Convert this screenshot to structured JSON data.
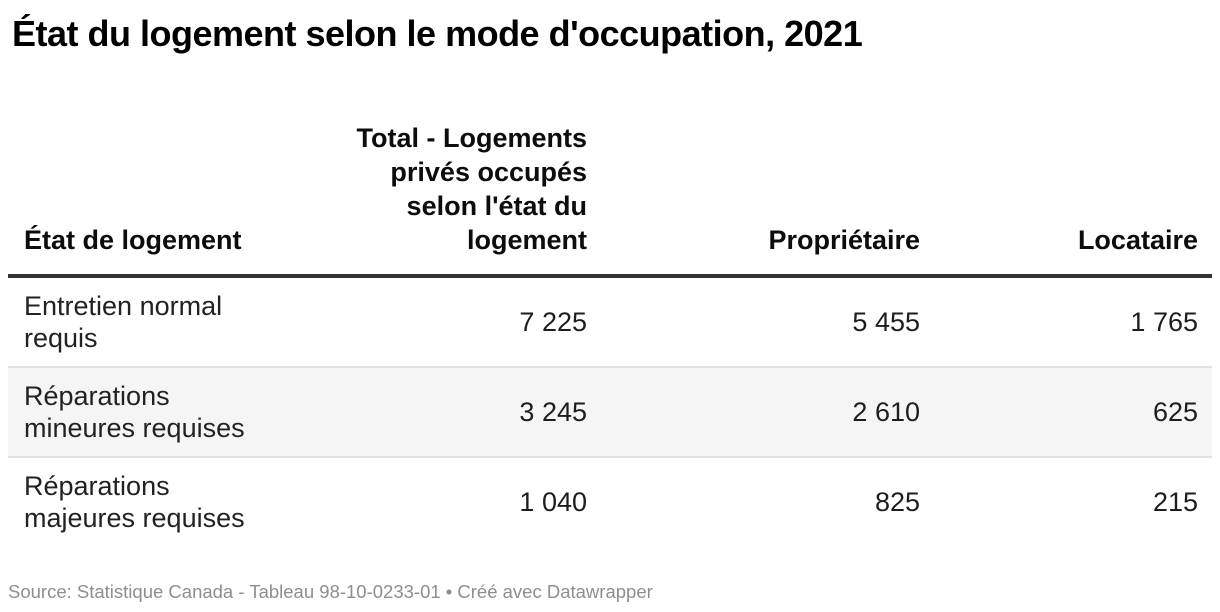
{
  "title": "État du logement selon le mode d'occupation, 2021",
  "table": {
    "columns": [
      "État de logement",
      "Total - Logements\nprivés occupés\nselon l'état du\nlogement",
      "Propriétaire",
      "Locataire"
    ],
    "rows": [
      {
        "cells": [
          "Entretien normal\nrequis",
          "7 225",
          "5 455",
          "1 765"
        ]
      },
      {
        "cells": [
          "Réparations\nmineures requises",
          "3 245",
          "2 610",
          "625"
        ]
      },
      {
        "cells": [
          "Réparations\nmajeures requises",
          "1 040",
          "825",
          "215"
        ]
      }
    ]
  },
  "footer": {
    "text": "Source: Statistique Canada - Tableau 98-10-0233-01 • Créé avec Datawrapper"
  },
  "colors": {
    "header_rule": "#333333",
    "row_divider": "#e1e1e1",
    "zebra_row_bg": "#f5f5f5",
    "footer_text": "#8e8e8e",
    "body_text": "#1d1d1d"
  },
  "chart_data": {
    "type": "table",
    "title": "État du logement selon le mode d'occupation, 2021",
    "categories": [
      "Entretien normal requis",
      "Réparations mineures requises",
      "Réparations majeures requises"
    ],
    "series": [
      {
        "name": "Total - Logements privés occupés selon l'état du logement",
        "values": [
          7225,
          3245,
          1040
        ]
      },
      {
        "name": "Propriétaire",
        "values": [
          5455,
          2610,
          825
        ]
      },
      {
        "name": "Locataire",
        "values": [
          1765,
          625,
          215
        ]
      }
    ],
    "row_header_label": "État de logement",
    "source": "Statistique Canada - Tableau 98-10-0233-01",
    "credit": "Créé avec Datawrapper",
    "layout_hints": {
      "zebra_striping": true,
      "number_alignment": "right",
      "grouping_separator": "thin space"
    }
  }
}
